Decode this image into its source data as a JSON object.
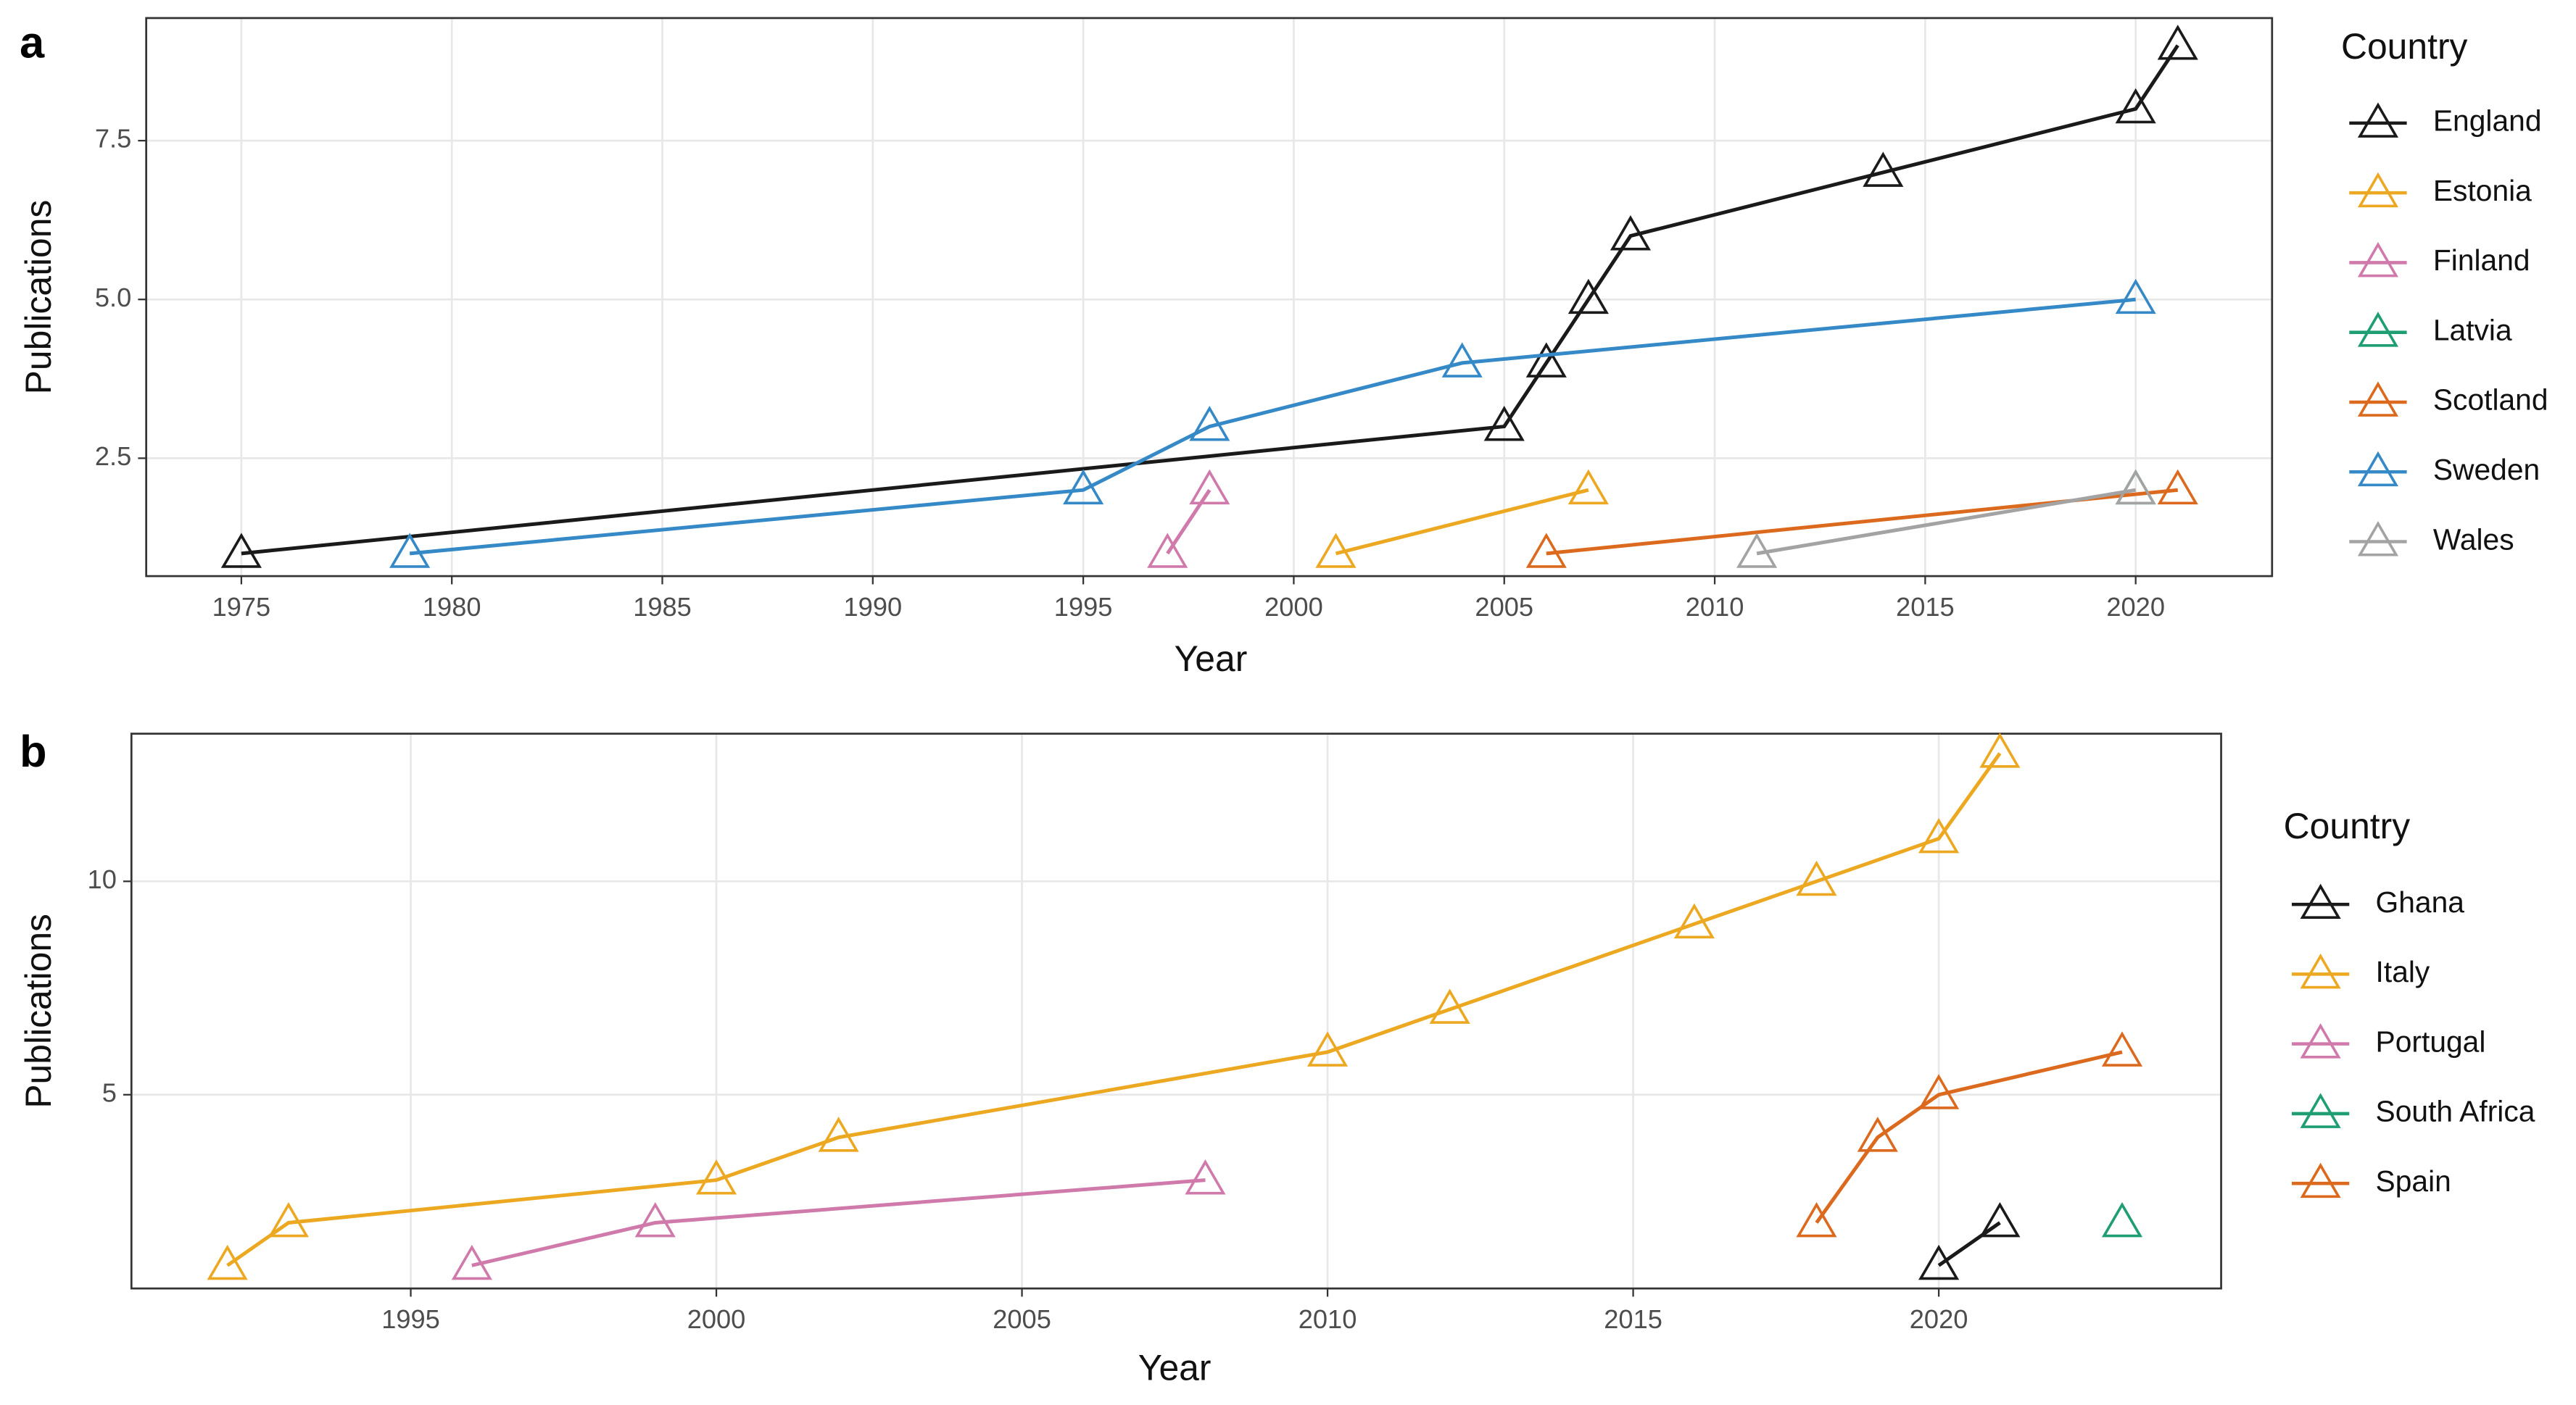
{
  "chart_data": [
    {
      "type": "line",
      "label": "a",
      "xlabel": "Year",
      "ylabel": "Publications",
      "legend_title": "Country",
      "xlim": [
        1972.74,
        2023.24
      ],
      "ylim": [
        0.644,
        9.43
      ],
      "xticks": [
        1975,
        1980,
        1985,
        1990,
        1995,
        2000,
        2005,
        2010,
        2015,
        2020
      ],
      "yticks": [
        2.5,
        {
          "value": 5,
          "label": "5.0"
        },
        7.5
      ],
      "grid": true,
      "series": [
        {
          "name": "England",
          "color": "#1a1a1a",
          "x": [
            1975,
            2005,
            2006,
            2007,
            2008,
            2014,
            2020,
            2021
          ],
          "values": [
            1,
            3,
            4,
            5,
            6,
            7,
            8,
            9
          ]
        },
        {
          "name": "Estonia",
          "color": "#eca820",
          "x": [
            2001,
            2007
          ],
          "values": [
            1,
            2
          ]
        },
        {
          "name": "Finland",
          "color": "#d07aab",
          "x": [
            1997,
            1998
          ],
          "values": [
            1,
            2
          ]
        },
        {
          "name": "Latvia",
          "color": "#1f9e74",
          "x": [
            2020
          ],
          "values": [
            2
          ]
        },
        {
          "name": "Scotland",
          "color": "#dc6a1e",
          "x": [
            2006,
            2021
          ],
          "values": [
            1,
            2
          ]
        },
        {
          "name": "Sweden",
          "color": "#3589c7",
          "x": [
            1979,
            1995,
            1998,
            2004,
            2020
          ],
          "values": [
            1,
            2,
            3,
            4,
            5
          ]
        },
        {
          "name": "Wales",
          "color": "#a3a3a3",
          "x": [
            2011,
            2020
          ],
          "values": [
            1,
            2
          ]
        }
      ]
    },
    {
      "type": "line",
      "label": "b",
      "xlabel": "Year",
      "ylabel": "Publications",
      "legend_title": "Country",
      "xlim": [
        1990.43,
        2024.62
      ],
      "ylim": [
        0.46,
        13.46
      ],
      "xticks": [
        1995,
        2000,
        2005,
        2010,
        2015,
        2020
      ],
      "yticks": [
        5,
        10
      ],
      "grid": true,
      "series": [
        {
          "name": "Ghana",
          "color": "#1a1a1a",
          "x": [
            2020,
            2021
          ],
          "values": [
            1,
            2
          ]
        },
        {
          "name": "Italy",
          "color": "#eca820",
          "x": [
            1992,
            1993,
            2000,
            2002,
            2010,
            2012,
            2016,
            2018,
            2020,
            2021
          ],
          "values": [
            1,
            2,
            3,
            4,
            6,
            7,
            9,
            10,
            11,
            13
          ]
        },
        {
          "name": "Portugal",
          "color": "#d07aab",
          "x": [
            1996,
            1999,
            2008
          ],
          "values": [
            1,
            2,
            3
          ]
        },
        {
          "name": "South Africa",
          "color": "#1f9e74",
          "x": [
            2023
          ],
          "values": [
            2
          ]
        },
        {
          "name": "Spain",
          "color": "#dc6a1e",
          "x": [
            2018,
            2019,
            2020,
            2023
          ],
          "values": [
            2,
            4,
            5,
            6
          ]
        }
      ]
    }
  ]
}
